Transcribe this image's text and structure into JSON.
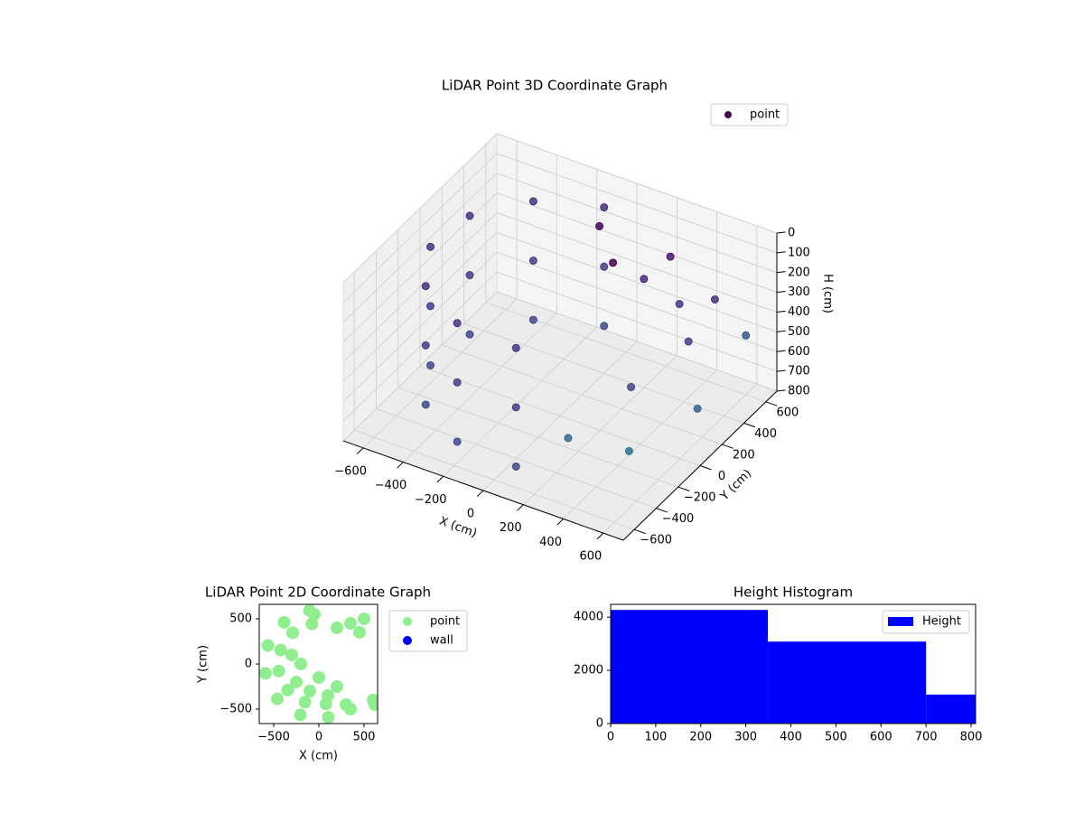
{
  "chart_data": [
    {
      "type": "scatter3d",
      "title": "LiDAR Point 3D Coordinate Graph",
      "xlabel": "X (cm)",
      "ylabel": "Y (cm)",
      "zlabel": "H (cm)",
      "xlim": [
        -700,
        700
      ],
      "ylim": [
        -700,
        700
      ],
      "zlim": [
        0,
        800
      ],
      "zinverted": true,
      "grid": true,
      "legend": "upper right",
      "xticks": [
        {
          "value": -600,
          "label": "−600"
        },
        {
          "value": -400,
          "label": "−400"
        },
        {
          "value": -200,
          "label": "−200"
        },
        0,
        200,
        400,
        600
      ],
      "yticks": [
        {
          "value": -600,
          "label": "−600"
        },
        {
          "value": -400,
          "label": "−400"
        },
        {
          "value": -200,
          "label": "−200"
        },
        0,
        200,
        400,
        600
      ],
      "zticks": [
        0,
        100,
        200,
        300,
        400,
        500,
        600,
        700,
        800
      ],
      "series": [
        {
          "name": "point",
          "color": "#440154",
          "x": [
            -104,
            -386,
            -564,
            -591,
            -460,
            -205,
            104,
            -104,
            -386,
            -564,
            -591,
            -460,
            -205,
            104,
            -104,
            -386,
            -564,
            -591,
            -460,
            -205,
            104,
            200,
            350,
            450,
            500,
            300,
            150,
            400,
            550,
            100,
            250,
            -50,
            600
          ],
          "y": [
            591,
            460,
            205,
            -104,
            -386,
            -564,
            -591,
            591,
            460,
            205,
            -104,
            -386,
            -564,
            -591,
            591,
            460,
            205,
            -104,
            -386,
            -564,
            -591,
            400,
            450,
            350,
            500,
            100,
            -200,
            -100,
            250,
            300,
            550,
            450,
            600
          ],
          "z": [
            100,
            100,
            100,
            100,
            100,
            100,
            100,
            400,
            400,
            400,
            400,
            400,
            400,
            400,
            700,
            700,
            700,
            700,
            700,
            700,
            700,
            250,
            350,
            450,
            300,
            600,
            750,
            780,
            700,
            150,
            200,
            100,
            500
          ],
          "colors": [
            "#46327e",
            "#46327e",
            "#46327e",
            "#46327e",
            "#46327e",
            "#46327e",
            "#46327e",
            "#433e85",
            "#433e85",
            "#433e85",
            "#433e85",
            "#433e85",
            "#433e85",
            "#433e85",
            "#3e4989",
            "#3e4989",
            "#3e4989",
            "#3e4989",
            "#3e4989",
            "#3e4989",
            "#3e4989",
            "#482878",
            "#453781",
            "#433e85",
            "#46327e",
            "#3e4989",
            "#31688e",
            "#2c728e",
            "#35608d",
            "#440154",
            "#481567",
            "#440154",
            "#39568c"
          ]
        }
      ]
    },
    {
      "type": "scatter",
      "title": "LiDAR Point 2D Coordinate Graph",
      "xlabel": "X (cm)",
      "ylabel": "Y (cm)",
      "xlim": [
        -660,
        650
      ],
      "ylim": [
        -660,
        660
      ],
      "legend": "outside right",
      "xticks": [
        {
          "value": -500,
          "label": "−500"
        },
        0,
        500
      ],
      "yticks": [
        {
          "value": -500,
          "label": "−500"
        },
        0,
        500
      ],
      "series": [
        {
          "name": "point",
          "color": "#90ee90",
          "x": [
            -104,
            -386,
            -564,
            -591,
            -460,
            -205,
            104,
            -78,
            -290,
            -423,
            -443,
            -345,
            -154,
            78,
            -200,
            -300,
            -250,
            -100,
            0,
            100,
            200,
            300,
            350,
            200,
            350,
            450,
            500,
            600,
            620,
            -50
          ],
          "y": [
            591,
            460,
            205,
            -104,
            -386,
            -564,
            -591,
            443,
            345,
            154,
            -78,
            -289,
            -423,
            -443,
            0,
            100,
            -200,
            -300,
            -150,
            -350,
            -250,
            -450,
            -500,
            400,
            450,
            350,
            500,
            -400,
            -450,
            550
          ]
        },
        {
          "name": "wall",
          "color": "#0000ff",
          "x": [],
          "y": []
        }
      ]
    },
    {
      "type": "histogram",
      "title": "Height Histogram",
      "xlim": [
        0,
        810
      ],
      "ylim": [
        0,
        4480
      ],
      "xticks": [
        0,
        100,
        200,
        300,
        400,
        500,
        600,
        700,
        800
      ],
      "yticks": [
        0,
        2000,
        4000
      ],
      "legend": "upper right",
      "series": [
        {
          "name": "Height",
          "color": "#0000ff",
          "bins": [
            0,
            349,
            700,
            810
          ],
          "values": [
            4270,
            3080,
            1090
          ]
        }
      ]
    }
  ]
}
